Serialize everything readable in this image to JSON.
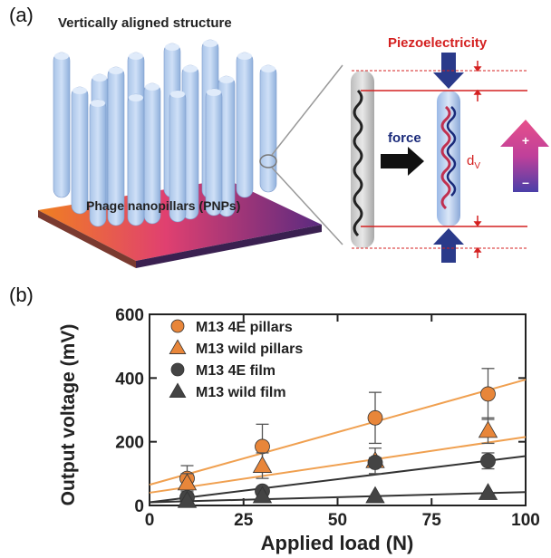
{
  "panel_a": {
    "label": "(a)",
    "structure_title": "Vertically aligned structure",
    "substrate_label": "Phage nanopillars (PNPs)",
    "piezo_title": "Piezoelectricity",
    "force_label": "force",
    "dv_label": "d",
    "dv_sub": "V",
    "plus": "+",
    "minus": "–"
  },
  "panel_b": {
    "label": "(b)"
  },
  "chart_data": {
    "type": "scatter",
    "xlabel": "Applied load (N)",
    "ylabel": "Output voltage (mV)",
    "xlim": [
      0,
      100
    ],
    "ylim": [
      0,
      600
    ],
    "xticks": [
      0,
      25,
      50,
      75,
      100
    ],
    "yticks": [
      0,
      200,
      400,
      600
    ],
    "legend_position": "top-left",
    "series": [
      {
        "name": "M13 4E pillars",
        "marker": "circle",
        "color": "#e8863a",
        "line_color": "#f0a050",
        "x": [
          10,
          30,
          60,
          90
        ],
        "y": [
          85,
          185,
          275,
          350
        ],
        "err": [
          40,
          70,
          80,
          80
        ],
        "fit": [
          [
            0,
            65
          ],
          [
            100,
            395
          ]
        ]
      },
      {
        "name": "M13 wild pillars",
        "marker": "triangle",
        "color": "#e8863a",
        "line_color": "#f0a050",
        "x": [
          10,
          30,
          60,
          90
        ],
        "y": [
          70,
          125,
          140,
          235
        ],
        "err": [
          30,
          40,
          40,
          40
        ],
        "fit": [
          [
            0,
            40
          ],
          [
            100,
            215
          ]
        ]
      },
      {
        "name": "M13 4E film",
        "marker": "circle",
        "color": "#444444",
        "line_color": "#333333",
        "x": [
          10,
          30,
          60,
          90
        ],
        "y": [
          25,
          45,
          135,
          140
        ],
        "err": [
          10,
          10,
          15,
          25
        ],
        "fit": [
          [
            0,
            10
          ],
          [
            100,
            155
          ]
        ]
      },
      {
        "name": "M13 wild film",
        "marker": "triangle",
        "color": "#444444",
        "line_color": "#333333",
        "x": [
          10,
          30,
          60,
          90
        ],
        "y": [
          15,
          30,
          30,
          40
        ],
        "err": [
          0,
          0,
          0,
          0
        ],
        "fit": [
          [
            0,
            10
          ],
          [
            100,
            42
          ]
        ]
      }
    ]
  }
}
